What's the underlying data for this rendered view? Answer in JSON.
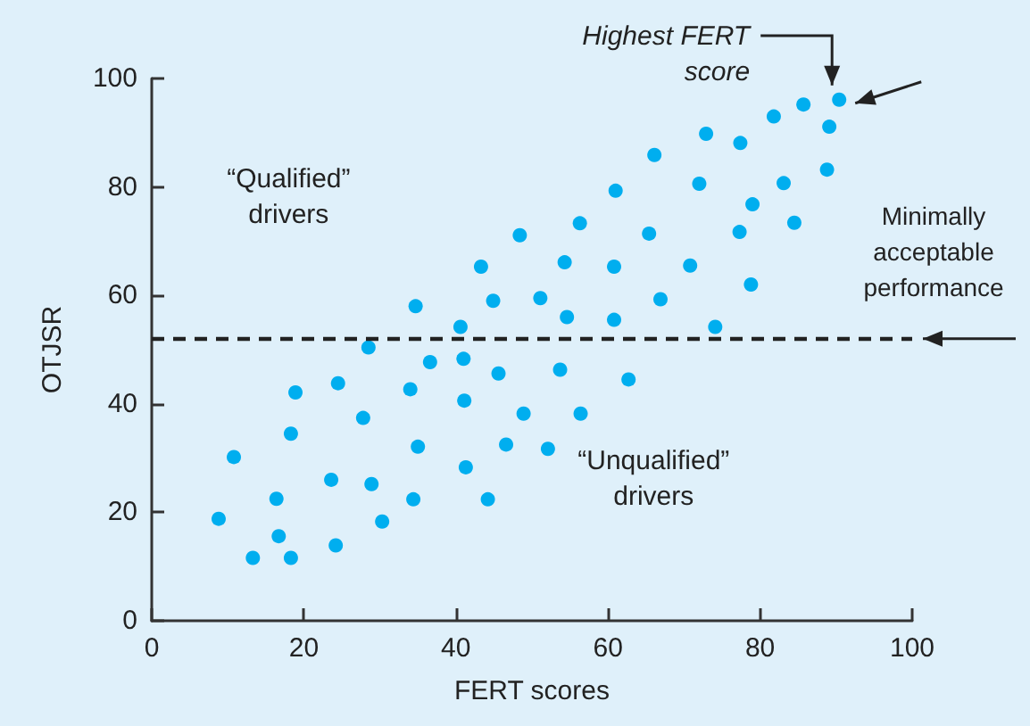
{
  "chart_data": {
    "type": "scatter",
    "xlabel": "FERT scores",
    "ylabel": "OTJSR",
    "x": [
      8.8,
      10.8,
      13.3,
      16.7,
      16.4,
      18.3,
      18.3,
      18.9,
      23.6,
      24.2,
      24.5,
      27.8,
      28.9,
      28.5,
      30.3,
      34.0,
      34.7,
      34.4,
      35.0,
      36.6,
      40.6,
      41.0,
      41.1,
      41.3,
      43.3,
      44.9,
      45.6,
      44.2,
      46.6,
      48.9,
      51.1,
      54.6,
      60.8,
      66.9,
      78.8,
      74.1,
      53.7,
      62.7,
      56.4,
      52.1,
      90.4,
      85.7,
      81.8,
      89.1,
      72.9,
      77.4,
      66.1,
      88.8,
      61.0,
      72.0,
      83.1,
      79.0,
      56.3,
      65.4,
      77.3,
      84.5,
      48.4,
      54.3,
      60.8,
      70.8
    ],
    "values": [
      18.8,
      30.2,
      11.6,
      15.6,
      22.5,
      11.6,
      34.5,
      42.1,
      26.0,
      13.9,
      43.8,
      37.4,
      25.2,
      50.4,
      18.3,
      42.7,
      58.0,
      22.4,
      32.1,
      47.7,
      54.2,
      48.3,
      40.6,
      28.3,
      65.3,
      59.0,
      45.6,
      22.4,
      32.5,
      38.2,
      59.5,
      56.0,
      55.5,
      59.3,
      62.0,
      54.2,
      46.3,
      44.5,
      38.2,
      31.7,
      96.1,
      95.2,
      93.0,
      91.1,
      89.8,
      88.1,
      85.9,
      83.2,
      79.3,
      80.6,
      80.7,
      76.8,
      73.3,
      71.4,
      71.7,
      73.4,
      71.1,
      66.1,
      65.3,
      65.5
    ],
    "color": "#00aeef",
    "marker": "circle",
    "xlim": [
      0,
      100
    ],
    "xticks": [
      0,
      20,
      40,
      60,
      80,
      100
    ],
    "ylim": [
      0,
      100
    ],
    "yticks": [
      0,
      20,
      40,
      60,
      80,
      100
    ],
    "grid": false,
    "ref_lines": [
      {
        "axis": "y",
        "value": 52,
        "label": "Minimally acceptable performance",
        "color": "#222222",
        "line_style": "dashed"
      }
    ],
    "annotations": [
      "Highest FERT score",
      "“Qualified” drivers",
      "“Unqualified” drivers"
    ]
  }
}
